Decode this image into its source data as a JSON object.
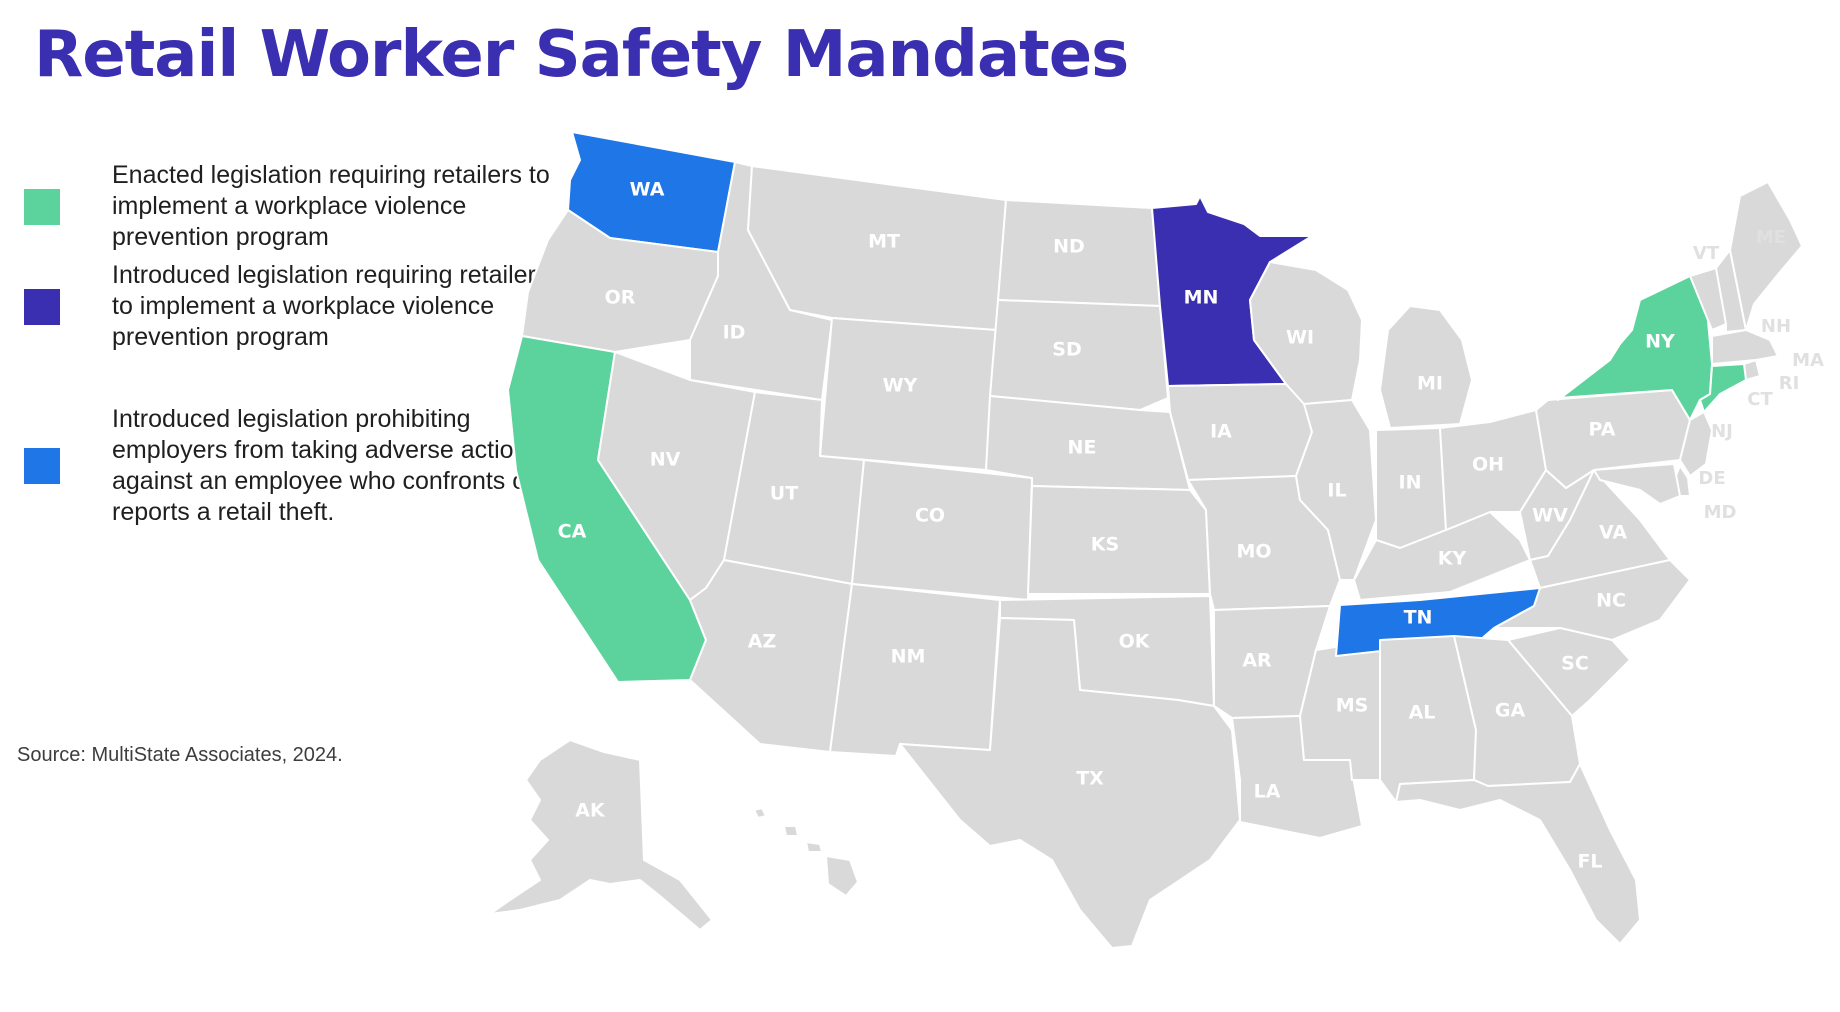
{
  "title": "Retail Worker Safety Mandates",
  "colors": {
    "enacted": "#5cd39c",
    "introduced_violence": "#3a2fb0",
    "introduced_theft": "#1f76e6",
    "default": "#d9d9d9",
    "title": "#3a2fb0"
  },
  "legend": [
    {
      "category": "enacted",
      "label": "Enacted legislation requiring retailers to implement a workplace violence prevention program"
    },
    {
      "category": "introduced_violence",
      "label": "Introduced legislation requiring retailers to implement a workplace violence prevention program"
    },
    {
      "category": "introduced_theft",
      "label": "Introduced legislation prohibiting employers from taking adverse action against an employee who confronts or reports a retail theft."
    }
  ],
  "source": "Source: MultiState Associates, 2024.",
  "states": {
    "WA": "introduced_theft",
    "OR": "default",
    "CA": "enacted",
    "ID": "default",
    "NV": "default",
    "MT": "default",
    "WY": "default",
    "UT": "default",
    "AZ": "default",
    "CO": "default",
    "NM": "default",
    "ND": "default",
    "SD": "default",
    "NE": "default",
    "KS": "default",
    "OK": "default",
    "TX": "default",
    "MN": "introduced_violence",
    "IA": "default",
    "MO": "default",
    "AR": "default",
    "LA": "default",
    "WI": "default",
    "IL": "default",
    "MS": "default",
    "MI": "default",
    "IN": "default",
    "KY": "default",
    "TN": "introduced_theft",
    "AL": "default",
    "OH": "default",
    "WV": "default",
    "VA": "default",
    "NC": "default",
    "SC": "default",
    "GA": "default",
    "FL": "default",
    "PA": "default",
    "NY": "enacted",
    "VT": "default",
    "NH": "default",
    "ME": "default",
    "MA": "default",
    "RI": "default",
    "CT": "enacted",
    "NJ": "default",
    "DE": "default",
    "MD": "default",
    "AK": "default",
    "HI": "default"
  }
}
